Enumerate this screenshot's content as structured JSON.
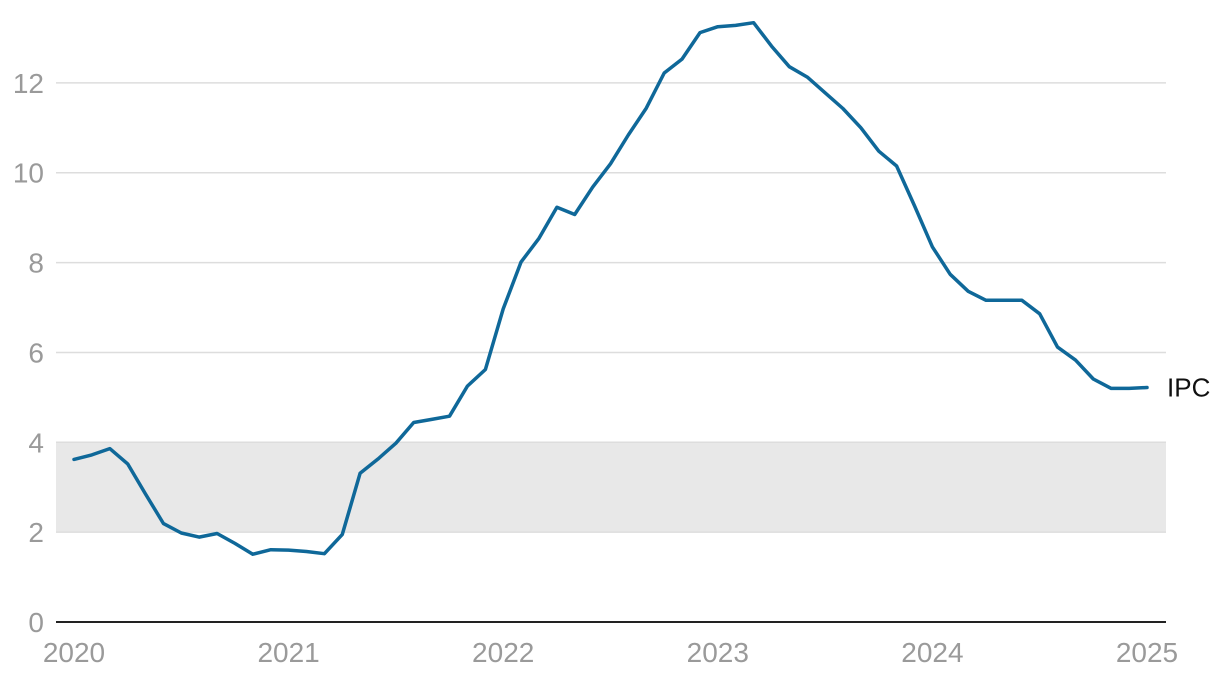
{
  "chart_data": {
    "type": "line",
    "title": "",
    "xlabel": "",
    "ylabel": "",
    "xlim": [
      2020,
      2025
    ],
    "ylim": [
      0,
      13.4
    ],
    "grid": true,
    "x_ticks": [
      2020,
      2021,
      2022,
      2023,
      2024,
      2025
    ],
    "x_tick_labels": [
      "2020",
      "2021",
      "2022",
      "2023",
      "2024",
      "2025"
    ],
    "y_ticks": [
      0,
      2,
      4,
      6,
      8,
      10,
      12
    ],
    "y_tick_labels": [
      "0",
      "2",
      "4",
      "6",
      "8",
      "10",
      "12"
    ],
    "target_band": [
      2,
      4
    ],
    "colors": {
      "series": "#0f6899",
      "band": "#e8e8e8",
      "grid": "#dddddd",
      "axis": "#222222"
    },
    "series": [
      {
        "name": "IPC",
        "x": [
          2020.0,
          2020.083,
          2020.167,
          2020.25,
          2020.333,
          2020.417,
          2020.5,
          2020.583,
          2020.667,
          2020.75,
          2020.833,
          2020.917,
          2021.0,
          2021.083,
          2021.167,
          2021.25,
          2021.333,
          2021.417,
          2021.5,
          2021.583,
          2021.667,
          2021.75,
          2021.833,
          2021.917,
          2022.0,
          2022.083,
          2022.167,
          2022.25,
          2022.333,
          2022.417,
          2022.5,
          2022.583,
          2022.667,
          2022.75,
          2022.833,
          2022.917,
          2023.0,
          2023.083,
          2023.167,
          2023.25,
          2023.333,
          2023.417,
          2023.5,
          2023.583,
          2023.667,
          2023.75,
          2023.833,
          2023.917,
          2024.0,
          2024.083,
          2024.167,
          2024.25,
          2024.333,
          2024.417,
          2024.5,
          2024.583,
          2024.667,
          2024.75,
          2024.833,
          2024.917,
          2025.0
        ],
        "values": [
          3.62,
          3.72,
          3.86,
          3.52,
          2.85,
          2.19,
          1.98,
          1.89,
          1.97,
          1.75,
          1.51,
          1.61,
          1.6,
          1.57,
          1.52,
          1.95,
          3.31,
          3.63,
          3.98,
          4.44,
          4.51,
          4.58,
          5.25,
          5.62,
          6.97,
          8.01,
          8.54,
          9.23,
          9.07,
          9.68,
          10.2,
          10.84,
          11.44,
          12.22,
          12.53,
          13.12,
          13.25,
          13.28,
          13.34,
          12.82,
          12.36,
          12.13,
          11.78,
          11.43,
          11.0,
          10.48,
          10.15,
          9.26,
          8.35,
          7.74,
          7.36,
          7.16,
          7.16,
          7.16,
          6.86,
          6.12,
          5.83,
          5.41,
          5.2,
          5.2,
          5.22
        ]
      }
    ]
  }
}
